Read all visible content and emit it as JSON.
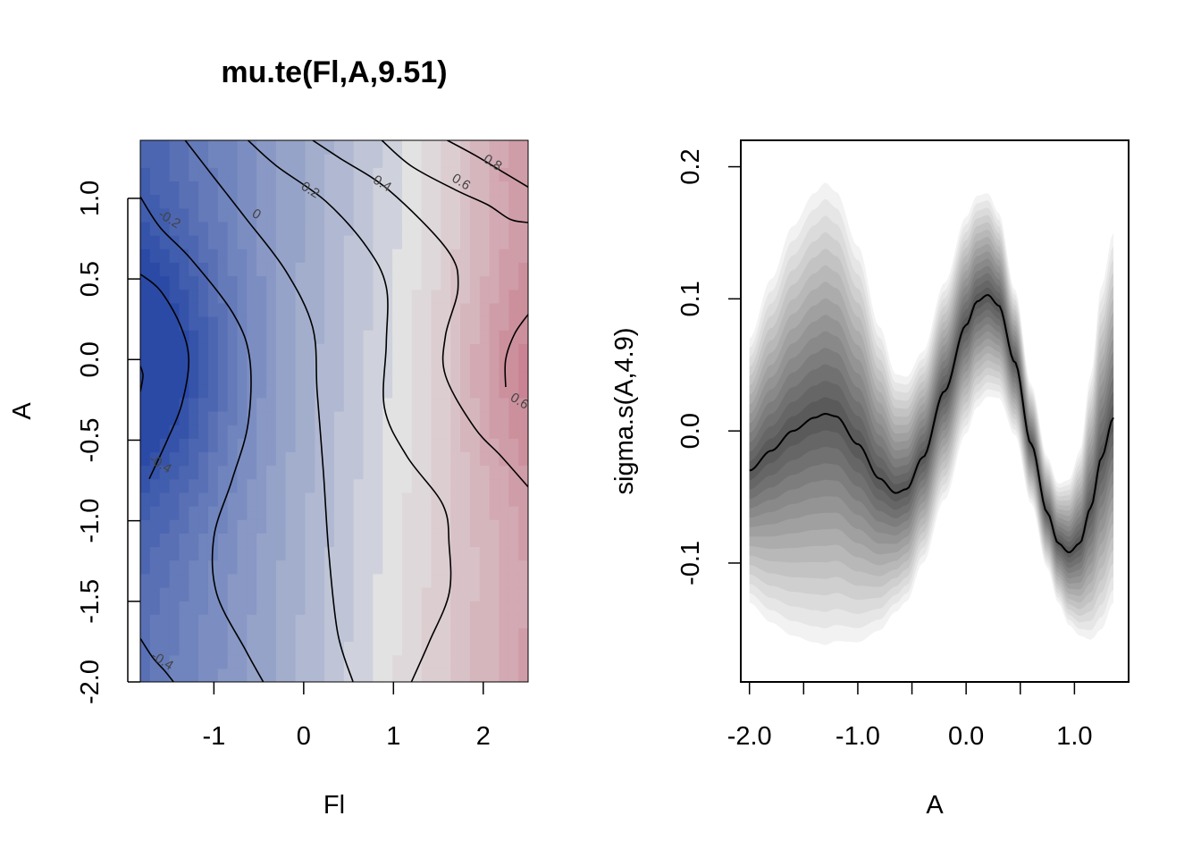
{
  "chart_data": [
    {
      "type": "heatmap",
      "title": "mu.te(Fl,A,9.51)",
      "xlabel": "Fl",
      "ylabel": "A",
      "xlim": [
        -1.82,
        2.5
      ],
      "ylim": [
        -2.0,
        1.36
      ],
      "x_ticks": [
        -1,
        0,
        1,
        2
      ],
      "x_tick_labels": [
        "-1",
        "0",
        "1",
        "2"
      ],
      "y_ticks": [
        -2.0,
        -1.5,
        -1.0,
        -0.5,
        0.0,
        0.5,
        1.0
      ],
      "y_tick_labels": [
        "-2.0",
        "-1.5",
        "-1.0",
        "-0.5",
        "0.0",
        "0.5",
        "1.0"
      ],
      "colormap": {
        "low": "#2b4aa6",
        "mid": "#e2e2e2",
        "high": "#b3324f",
        "range": [
          -0.5,
          0.9
        ]
      },
      "contour_levels": [
        -0.4,
        -0.2,
        0,
        0.2,
        0.4,
        0.6,
        0.8
      ],
      "contour_labels": [
        {
          "text": "-0.2",
          "x": -1.52,
          "y": 0.85
        },
        {
          "text": "0",
          "x": -0.55,
          "y": 0.88
        },
        {
          "text": "0.2",
          "x": 0.05,
          "y": 1.03
        },
        {
          "text": "0.4",
          "x": 0.85,
          "y": 1.07
        },
        {
          "text": "0.6",
          "x": 1.73,
          "y": 1.08
        },
        {
          "text": "0.8",
          "x": 2.08,
          "y": 1.2
        },
        {
          "text": "0.6",
          "x": 2.38,
          "y": -0.28
        },
        {
          "text": "-0.4",
          "x": -1.62,
          "y": -0.67
        },
        {
          "text": "-0.4",
          "x": -1.6,
          "y": -1.89
        }
      ],
      "contour_lines": [
        {
          "level": "-0.4",
          "points": [
            [
              -1.82,
              0.53
            ],
            [
              -1.6,
              0.43
            ],
            [
              -1.38,
              0.22
            ],
            [
              -1.28,
              0.0
            ],
            [
              -1.36,
              -0.28
            ],
            [
              -1.52,
              -0.5
            ],
            [
              -1.72,
              -0.74
            ]
          ]
        },
        {
          "level": "-0.4",
          "points": [
            [
              -1.82,
              -0.04
            ],
            [
              -1.79,
              -0.1
            ],
            [
              -1.82,
              -0.2
            ]
          ]
        },
        {
          "level": "-0.4",
          "points": [
            [
              -1.82,
              -1.73
            ],
            [
              -1.68,
              -1.85
            ],
            [
              -1.55,
              -1.93
            ],
            [
              -1.45,
              -2.0
            ]
          ]
        },
        {
          "level": "-0.2",
          "points": [
            [
              -1.82,
              1.01
            ],
            [
              -1.6,
              0.82
            ],
            [
              -1.25,
              0.62
            ],
            [
              -0.78,
              0.28
            ],
            [
              -0.6,
              0.0
            ],
            [
              -0.62,
              -0.4
            ],
            [
              -0.8,
              -0.75
            ],
            [
              -1.0,
              -1.1
            ],
            [
              -0.97,
              -1.45
            ],
            [
              -0.65,
              -1.8
            ],
            [
              -0.45,
              -2.0
            ]
          ]
        },
        {
          "level": "0",
          "points": [
            [
              -1.32,
              1.36
            ],
            [
              -1.0,
              1.13
            ],
            [
              -0.65,
              0.88
            ],
            [
              -0.2,
              0.55
            ],
            [
              0.1,
              0.2
            ],
            [
              0.15,
              -0.2
            ],
            [
              0.22,
              -0.7
            ],
            [
              0.28,
              -1.2
            ],
            [
              0.38,
              -1.7
            ],
            [
              0.55,
              -2.0
            ]
          ]
        },
        {
          "level": "0.2",
          "points": [
            [
              -0.62,
              1.36
            ],
            [
              -0.3,
              1.2
            ],
            [
              0.25,
              0.98
            ],
            [
              0.7,
              0.7
            ],
            [
              0.92,
              0.45
            ],
            [
              0.92,
              0.1
            ],
            [
              0.9,
              -0.3
            ],
            [
              1.15,
              -0.6
            ],
            [
              1.55,
              -0.9
            ],
            [
              1.62,
              -1.15
            ],
            [
              1.62,
              -1.45
            ],
            [
              1.4,
              -1.75
            ],
            [
              1.2,
              -2.0
            ]
          ]
        },
        {
          "level": "0.4",
          "points": [
            [
              0.1,
              1.36
            ],
            [
              0.4,
              1.25
            ],
            [
              0.95,
              1.05
            ],
            [
              1.6,
              0.68
            ],
            [
              1.72,
              0.45
            ],
            [
              1.58,
              0.15
            ],
            [
              1.58,
              -0.1
            ],
            [
              1.9,
              -0.42
            ],
            [
              2.2,
              -0.6
            ],
            [
              2.5,
              -0.79
            ]
          ]
        },
        {
          "level": "0.6",
          "points": [
            [
              0.87,
              1.36
            ],
            [
              1.2,
              1.2
            ],
            [
              1.7,
              1.05
            ],
            [
              2.05,
              0.96
            ],
            [
              2.3,
              0.87
            ],
            [
              2.5,
              0.85
            ]
          ]
        },
        {
          "level": "0.6",
          "points": [
            [
              2.5,
              0.28
            ],
            [
              2.35,
              0.16
            ],
            [
              2.25,
              0.0
            ],
            [
              2.25,
              -0.17
            ]
          ]
        },
        {
          "level": "0.8",
          "points": [
            [
              1.6,
              1.36
            ],
            [
              1.9,
              1.27
            ],
            [
              2.2,
              1.17
            ],
            [
              2.5,
              1.07
            ]
          ]
        }
      ]
    },
    {
      "type": "line",
      "xlabel": "A",
      "ylabel": "sigma.s(A,4.9)",
      "xlim": [
        -2.08,
        1.5
      ],
      "ylim": [
        -0.19,
        0.22
      ],
      "x_ticks": [
        -2.0,
        -1.5,
        -1.0,
        -0.5,
        0.0,
        0.5,
        1.0
      ],
      "x_tick_labels": [
        "-2.0",
        "",
        "-1.0",
        "",
        "0.0",
        "",
        "1.0"
      ],
      "y_ticks": [
        -0.1,
        0.0,
        0.1,
        0.2
      ],
      "y_tick_labels": [
        "-0.1",
        "0.0",
        "0.1",
        "0.2"
      ],
      "fan_layers": 14,
      "fan_colors": {
        "outer": "#f2f2f2",
        "inner": "#5a5a5a"
      },
      "series": [
        {
          "x": [
            -2.0,
            -1.8,
            -1.6,
            -1.4,
            -1.3,
            -1.2,
            -1.0,
            -0.8,
            -0.65,
            -0.55,
            -0.4,
            -0.2,
            0.0,
            0.1,
            0.2,
            0.3,
            0.45,
            0.6,
            0.75,
            0.85,
            0.95,
            1.05,
            1.15,
            1.25,
            1.36
          ],
          "y": [
            -0.03,
            -0.015,
            0.0,
            0.01,
            0.013,
            0.011,
            -0.01,
            -0.036,
            -0.047,
            -0.044,
            -0.02,
            0.03,
            0.08,
            0.098,
            0.103,
            0.095,
            0.052,
            -0.01,
            -0.062,
            -0.085,
            -0.092,
            -0.085,
            -0.058,
            -0.02,
            0.01
          ],
          "band_halfwidth": [
            0.1,
            0.13,
            0.155,
            0.17,
            0.175,
            0.17,
            0.15,
            0.115,
            0.09,
            0.085,
            0.08,
            0.082,
            0.082,
            0.08,
            0.077,
            0.07,
            0.055,
            0.045,
            0.042,
            0.045,
            0.055,
            0.07,
            0.1,
            0.13,
            0.14
          ]
        }
      ]
    }
  ]
}
